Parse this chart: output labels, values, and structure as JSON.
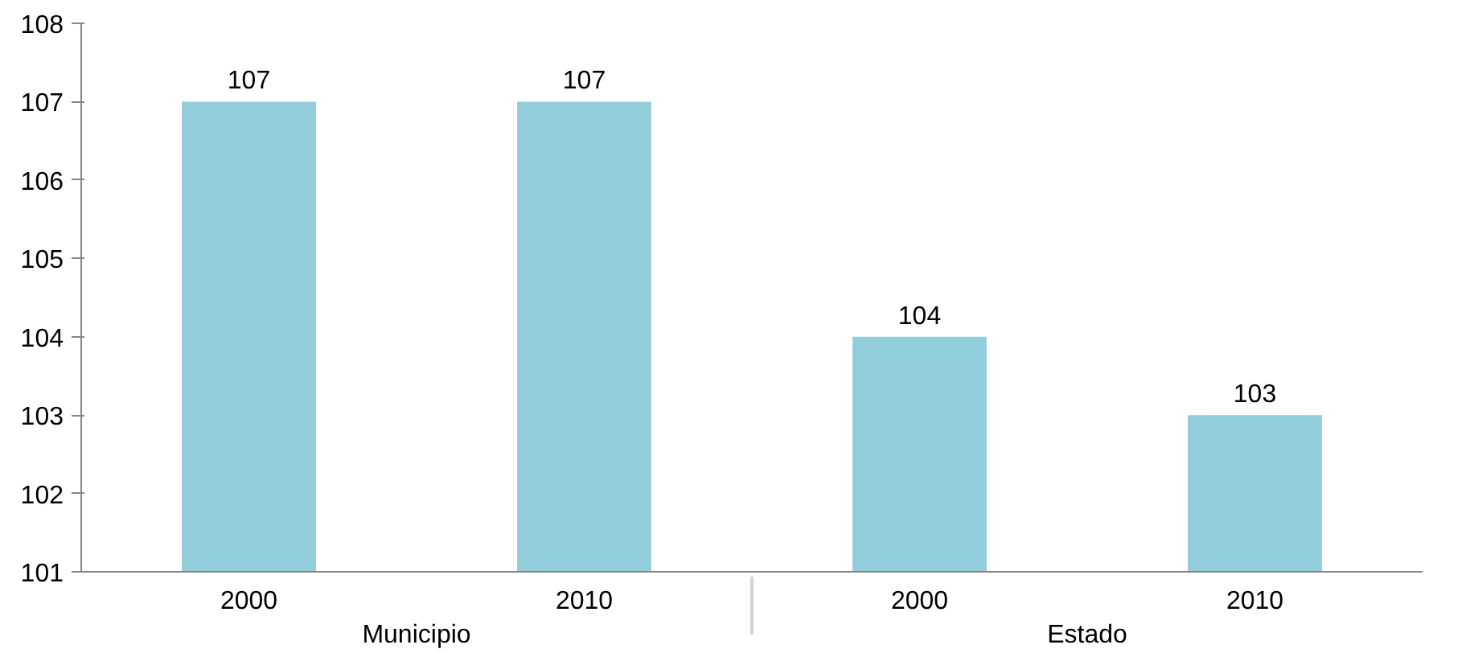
{
  "chart_data": {
    "type": "bar",
    "categories": [
      "2000",
      "2010",
      "2000",
      "2010"
    ],
    "annotations": [
      "Municipio",
      "Estado"
    ],
    "values": [
      107,
      107,
      104,
      103
    ],
    "color": "#92cddc",
    "ylim": [
      101,
      108
    ],
    "yticks": [
      101,
      102,
      103,
      104,
      105,
      106,
      107,
      108
    ],
    "data_labels": true
  }
}
